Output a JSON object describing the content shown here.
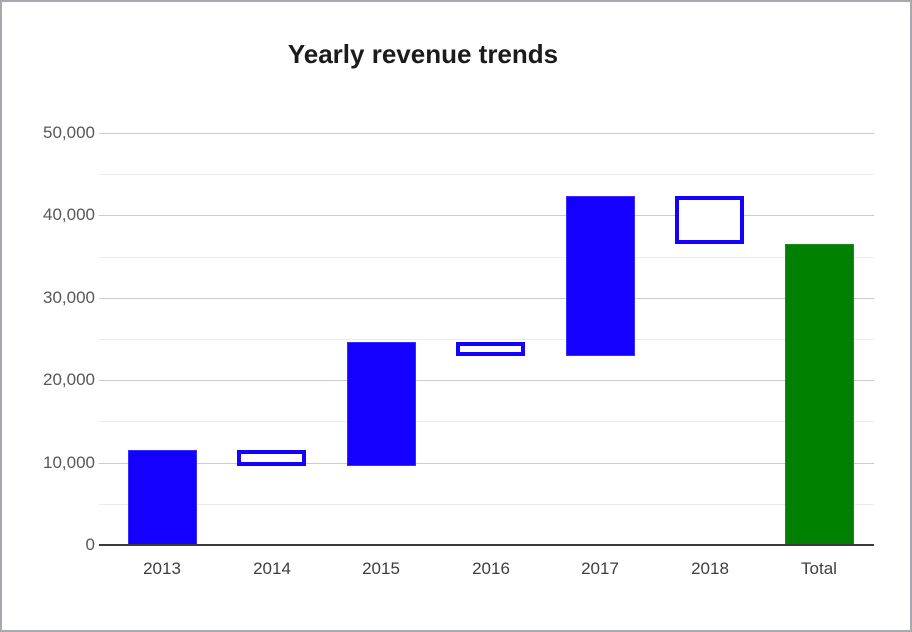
{
  "page": {
    "background": "#ffffff",
    "border_color": "#a8a8b0"
  },
  "chart_data": {
    "type": "bar",
    "subtype": "waterfall",
    "title": "Yearly revenue trends",
    "legend": "none",
    "grid": true,
    "categories": [
      "2013",
      "2014",
      "2015",
      "2016",
      "2017",
      "2018",
      "Total"
    ],
    "bars": [
      {
        "label": "2013",
        "start": 0,
        "end": 11500,
        "kind": "increase"
      },
      {
        "label": "2014",
        "start": 11500,
        "end": 9500,
        "kind": "decrease"
      },
      {
        "label": "2015",
        "start": 9500,
        "end": 24600,
        "kind": "increase"
      },
      {
        "label": "2016",
        "start": 24600,
        "end": 22900,
        "kind": "decrease"
      },
      {
        "label": "2017",
        "start": 22900,
        "end": 42300,
        "kind": "increase"
      },
      {
        "label": "2018",
        "start": 42300,
        "end": 36500,
        "kind": "decrease"
      },
      {
        "label": "Total",
        "start": 0,
        "end": 36500,
        "kind": "total"
      }
    ],
    "y_axis": {
      "min": 0,
      "max": 50000,
      "major_step": 10000,
      "minor_step": 5000,
      "tick_labels": [
        "0",
        "10,000",
        "20,000",
        "30,000",
        "40,000",
        "50,000"
      ]
    },
    "xlabel": "",
    "ylabel": "",
    "colors": {
      "increase_fill": "#1400ff",
      "decrease_fill": "#ffffff",
      "decrease_border": "#1400ff",
      "total_fill": "#008000",
      "gridline_major": "#cccccc",
      "gridline_minor": "#ebebeb",
      "axis_line": "#3a3a3a",
      "y_tick_label": "#58585b",
      "x_category_label": "#3e3e41",
      "title": "#1b1b1b"
    }
  }
}
